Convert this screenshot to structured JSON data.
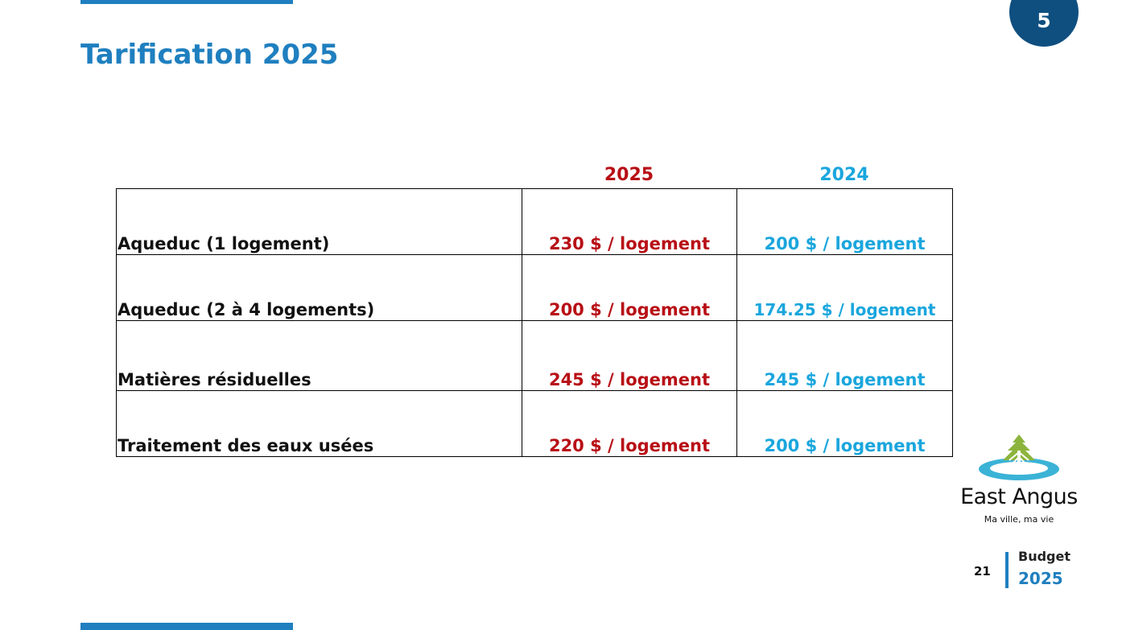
{
  "section_number": "5",
  "title": "Tarification 2025",
  "columns": {
    "year_current": "2025",
    "year_previous": "2024"
  },
  "rows": [
    {
      "label": "Aqueduc (1 logement)",
      "v2025": "230 $ / logement",
      "v2024": "200 $ / logement"
    },
    {
      "label": "Aqueduc (2 à 4 logements)",
      "v2025": "200 $ / logement",
      "v2024": "174.25 $ / logement"
    },
    {
      "label": "Matières résiduelles",
      "v2025": "245 $ / logement",
      "v2024": "245 $ / logement"
    },
    {
      "label": "Traitement des eaux usées",
      "v2025": "220 $ / logement",
      "v2024": "200 $ / logement"
    }
  ],
  "logo": {
    "name": "East Angus",
    "tagline": "Ma ville, ma vie",
    "icon": "tree-water-logo-icon"
  },
  "footer": {
    "page_number": "21",
    "budget_label": "Budget",
    "budget_year": "2025"
  },
  "colors": {
    "title_blue": "#1f7fbf",
    "badge_navy": "#0e4f80",
    "value_2025_red": "#b80f16",
    "value_2024_cyan": "#1aa6dd"
  }
}
